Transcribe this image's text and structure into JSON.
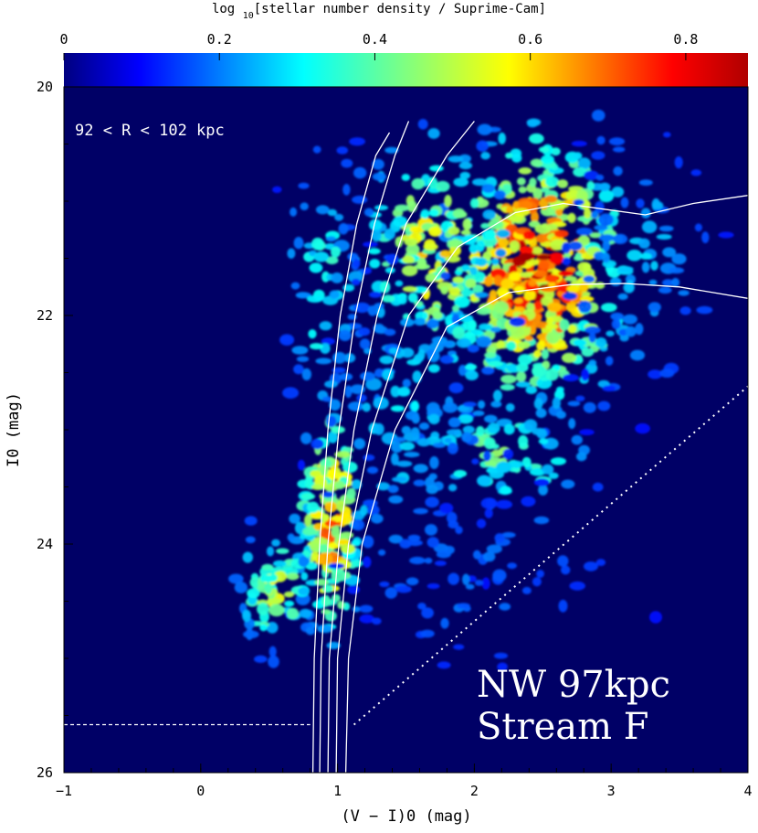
{
  "chart_data": {
    "type": "heatmap",
    "colorbar": {
      "title": "log10[stellar number density / Suprime-Cam]",
      "range": [
        0,
        0.88
      ],
      "ticks": [
        0,
        0.2,
        0.4,
        0.6,
        0.8
      ],
      "tick_labels": [
        "0",
        "0.2",
        "0.4",
        "0.6",
        "0.8"
      ],
      "colormap": "jet"
    },
    "xlabel": "(V − I)0 (mag)",
    "ylabel": "I0 (mag)",
    "xlim": [
      -1,
      4
    ],
    "ylim": [
      26,
      20
    ],
    "x_ticks": [
      -1,
      0,
      1,
      2,
      3,
      4
    ],
    "x_tick_labels": [
      "−1",
      "0",
      "1",
      "2",
      "3",
      "4"
    ],
    "y_ticks": [
      20,
      22,
      24,
      26
    ],
    "y_tick_labels": [
      "20",
      "22",
      "24",
      "26"
    ],
    "annotations": {
      "radius_range": "92 < R < 102 kpc",
      "field_line1": "NW 97kpc",
      "field_line2": "Stream F"
    },
    "density_regions": [
      {
        "cx": 2.45,
        "cy": 21.6,
        "sx": 0.55,
        "sy": 0.95,
        "peak": 0.78,
        "n": 520
      },
      {
        "cx": 1.7,
        "cy": 21.5,
        "sx": 0.45,
        "sy": 0.9,
        "peak": 0.5,
        "n": 170
      },
      {
        "cx": 0.95,
        "cy": 23.8,
        "sx": 0.2,
        "sy": 0.9,
        "peak": 0.62,
        "n": 190
      },
      {
        "cx": 0.9,
        "cy": 21.8,
        "sx": 0.25,
        "sy": 1.0,
        "peak": 0.3,
        "n": 70
      },
      {
        "cx": 0.55,
        "cy": 24.4,
        "sx": 0.25,
        "sy": 0.45,
        "peak": 0.45,
        "n": 70
      },
      {
        "cx": 2.2,
        "cy": 23.2,
        "sx": 0.6,
        "sy": 0.55,
        "peak": 0.35,
        "n": 90
      },
      {
        "cx": 1.5,
        "cy": 22.9,
        "sx": 0.5,
        "sy": 1.2,
        "peak": 0.22,
        "n": 110
      },
      {
        "cx": 3.2,
        "cy": 21.5,
        "sx": 0.45,
        "sy": 1.0,
        "peak": 0.2,
        "n": 80
      },
      {
        "cx": 2.0,
        "cy": 24.3,
        "sx": 0.9,
        "sy": 0.7,
        "peak": 0.12,
        "n": 60
      }
    ],
    "isochrones": [
      {
        "x": [
          0.82,
          0.83,
          0.87,
          0.93,
          1.02,
          1.14,
          1.28,
          1.38
        ],
        "y": [
          26.0,
          25.0,
          24.0,
          23.0,
          22.0,
          21.2,
          20.6,
          20.4
        ]
      },
      {
        "x": [
          0.87,
          0.88,
          0.93,
          1.01,
          1.13,
          1.27,
          1.42,
          1.52
        ],
        "y": [
          26.0,
          25.0,
          24.0,
          23.0,
          22.0,
          21.2,
          20.6,
          20.3
        ]
      },
      {
        "x": [
          0.93,
          0.94,
          1.01,
          1.12,
          1.29,
          1.5,
          1.8,
          2.0
        ],
        "y": [
          26.0,
          25.0,
          24.0,
          23.0,
          22.0,
          21.2,
          20.6,
          20.3
        ]
      },
      {
        "x": [
          0.99,
          1.0,
          1.08,
          1.25,
          1.52,
          1.88,
          2.3,
          2.65,
          2.95,
          3.25,
          3.6,
          4.0
        ],
        "y": [
          26.0,
          25.0,
          24.0,
          23.0,
          22.0,
          21.4,
          21.1,
          21.02,
          21.07,
          21.12,
          21.02,
          20.95
        ]
      },
      {
        "x": [
          1.06,
          1.08,
          1.18,
          1.42,
          1.8,
          2.25,
          2.7,
          3.1,
          3.5,
          4.0
        ],
        "y": [
          26.0,
          25.0,
          24.0,
          23.0,
          22.1,
          21.8,
          21.73,
          21.72,
          21.75,
          21.85
        ]
      }
    ],
    "completeness_limit": {
      "horizontal": {
        "x": [
          -1.0,
          0.8
        ],
        "y": [
          25.58,
          25.58
        ]
      },
      "sloped": {
        "x": [
          1.12,
          4.0
        ],
        "y": [
          25.58,
          22.62
        ]
      }
    }
  }
}
